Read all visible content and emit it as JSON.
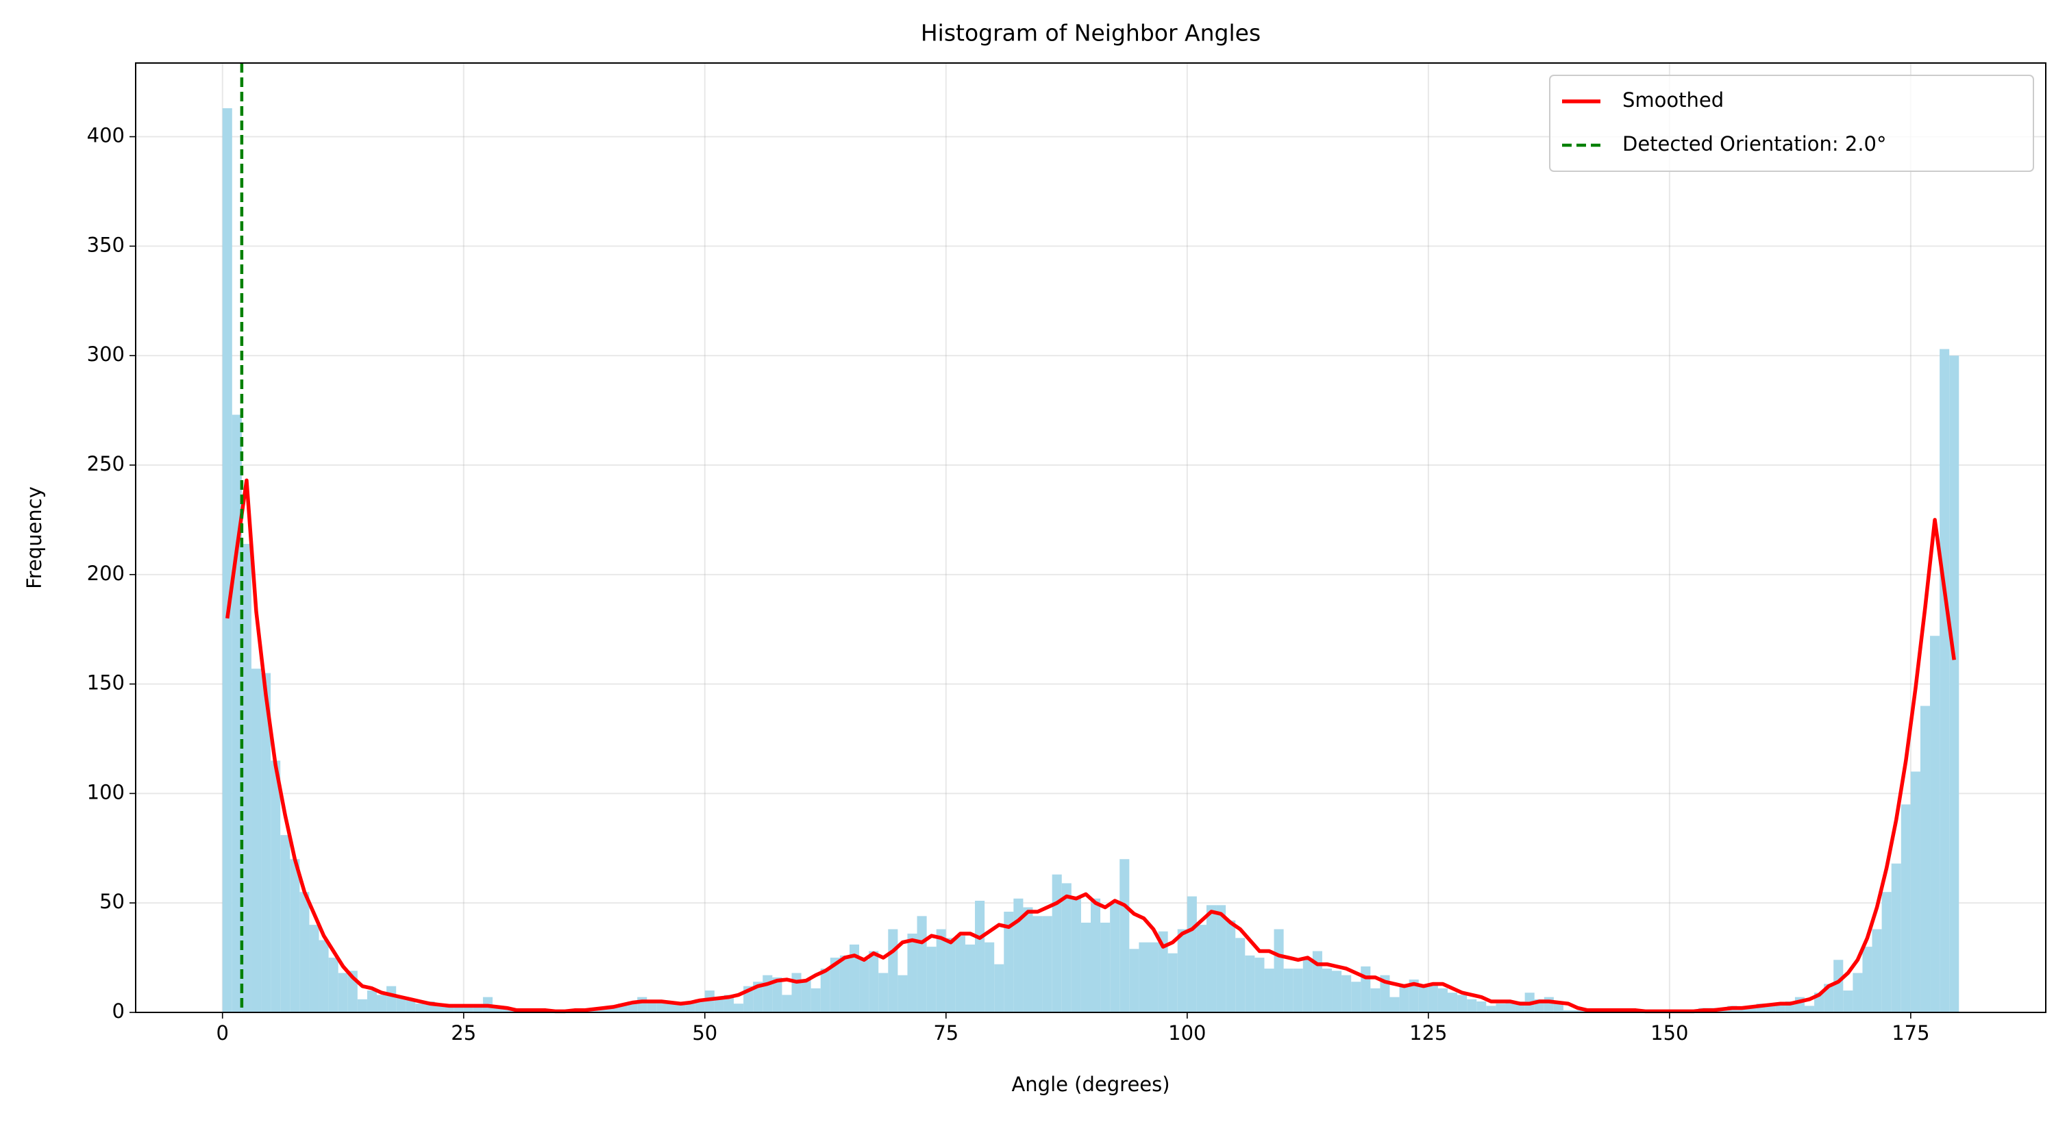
{
  "chart_data": {
    "type": "histogram",
    "title": "Histogram of Neighbor Angles",
    "xlabel": "Angle (degrees)",
    "ylabel": "Frequency",
    "bins": [
      0,
      1,
      2,
      3,
      4,
      5,
      6,
      7,
      8,
      9,
      10,
      11,
      12,
      13,
      14,
      15,
      16,
      17,
      18,
      19,
      20,
      21,
      22,
      23,
      24,
      25,
      26,
      27,
      28,
      29,
      30,
      31,
      32,
      33,
      34,
      35,
      36,
      37,
      38,
      39,
      40,
      41,
      42,
      43,
      44,
      45,
      46,
      47,
      48,
      49,
      50,
      51,
      52,
      53,
      54,
      55,
      56,
      57,
      58,
      59,
      60,
      61,
      62,
      63,
      64,
      65,
      66,
      67,
      68,
      69,
      70,
      71,
      72,
      73,
      74,
      75,
      76,
      77,
      78,
      79,
      80,
      81,
      82,
      83,
      84,
      85,
      86,
      87,
      88,
      89,
      90,
      91,
      92,
      93,
      94,
      95,
      96,
      97,
      98,
      99,
      100,
      101,
      102,
      103,
      104,
      105,
      106,
      107,
      108,
      109,
      110,
      111,
      112,
      113,
      114,
      115,
      116,
      117,
      118,
      119,
      120,
      121,
      122,
      123,
      124,
      125,
      126,
      127,
      128,
      129,
      130,
      131,
      132,
      133,
      134,
      135,
      136,
      137,
      138,
      139,
      140,
      141,
      142,
      143,
      144,
      145,
      146,
      147,
      148,
      149,
      150,
      151,
      152,
      153,
      154,
      155,
      156,
      157,
      158,
      159,
      160,
      161,
      162,
      163,
      164,
      165,
      166,
      167,
      168,
      169,
      170,
      171,
      172,
      173,
      174,
      175,
      176,
      177,
      178,
      179,
      180
    ],
    "counts": [
      413,
      273,
      214,
      157,
      155,
      115,
      81,
      70,
      55,
      40,
      33,
      25,
      18,
      19,
      6,
      10,
      8,
      12,
      7,
      6,
      4,
      5,
      3,
      3,
      3,
      3,
      3,
      7,
      2,
      2,
      1,
      1,
      1,
      0,
      0,
      1,
      1,
      1,
      2,
      2,
      3,
      4,
      5,
      7,
      5,
      5,
      4,
      4,
      5,
      6,
      10,
      6,
      8,
      4,
      12,
      14,
      17,
      16,
      8,
      18,
      15,
      11,
      20,
      25,
      26,
      31,
      24,
      28,
      18,
      38,
      17,
      36,
      44,
      30,
      38,
      34,
      35,
      31,
      51,
      32,
      22,
      46,
      52,
      48,
      44,
      44,
      63,
      59,
      53,
      41,
      52,
      41,
      50,
      70,
      29,
      32,
      32,
      37,
      27,
      38,
      53,
      40,
      49,
      49,
      42,
      34,
      26,
      25,
      20,
      38,
      20,
      20,
      24,
      28,
      20,
      19,
      17,
      14,
      21,
      11,
      17,
      7,
      13,
      15,
      12,
      13,
      11,
      9,
      8,
      6,
      5,
      3,
      4,
      5,
      5,
      9,
      6,
      7,
      5,
      1,
      1,
      1,
      1,
      1,
      1,
      1,
      1,
      1,
      1,
      1,
      1,
      1,
      1,
      2,
      2,
      2,
      3,
      2,
      3,
      4,
      4,
      4,
      5,
      7,
      3,
      9,
      13,
      24,
      10,
      18,
      30,
      38,
      55,
      68,
      95,
      110,
      140,
      172,
      303,
      300
    ],
    "color": "#a8d8ea",
    "smoothed": {
      "name": "Smoothed",
      "color": "#ff0000",
      "x": [
        0.5,
        1.5,
        2.5,
        3.5,
        4.5,
        5.5,
        6.5,
        7.5,
        8.5,
        9.5,
        10.5,
        11.5,
        12.5,
        13.5,
        14.5,
        15.5,
        16.5,
        17.5,
        18.5,
        19.5,
        20.5,
        21.5,
        22.5,
        23.5,
        24.5,
        25.5,
        26.5,
        27.5,
        28.5,
        29.5,
        30.5,
        31.5,
        32.5,
        33.5,
        34.5,
        35.5,
        36.5,
        37.5,
        38.5,
        39.5,
        40.5,
        41.5,
        42.5,
        43.5,
        44.5,
        45.5,
        46.5,
        47.5,
        48.5,
        49.5,
        50.5,
        51.5,
        52.5,
        53.5,
        54.5,
        55.5,
        56.5,
        57.5,
        58.5,
        59.5,
        60.5,
        61.5,
        62.5,
        63.5,
        64.5,
        65.5,
        66.5,
        67.5,
        68.5,
        69.5,
        70.5,
        71.5,
        72.5,
        73.5,
        74.5,
        75.5,
        76.5,
        77.5,
        78.5,
        79.5,
        80.5,
        81.5,
        82.5,
        83.5,
        84.5,
        85.5,
        86.5,
        87.5,
        88.5,
        89.5,
        90.5,
        91.5,
        92.5,
        93.5,
        94.5,
        95.5,
        96.5,
        97.5,
        98.5,
        99.5,
        100.5,
        101.5,
        102.5,
        103.5,
        104.5,
        105.5,
        106.5,
        107.5,
        108.5,
        109.5,
        110.5,
        111.5,
        112.5,
        113.5,
        114.5,
        115.5,
        116.5,
        117.5,
        118.5,
        119.5,
        120.5,
        121.5,
        122.5,
        123.5,
        124.5,
        125.5,
        126.5,
        127.5,
        128.5,
        129.5,
        130.5,
        131.5,
        132.5,
        133.5,
        134.5,
        135.5,
        136.5,
        137.5,
        138.5,
        139.5,
        140.5,
        141.5,
        142.5,
        143.5,
        144.5,
        145.5,
        146.5,
        147.5,
        148.5,
        149.5,
        150.5,
        151.5,
        152.5,
        153.5,
        154.5,
        155.5,
        156.5,
        157.5,
        158.5,
        159.5,
        160.5,
        161.5,
        162.5,
        163.5,
        164.5,
        165.5,
        166.5,
        167.5,
        168.5,
        169.5,
        170.5,
        171.5,
        172.5,
        173.5,
        174.5,
        175.5,
        176.5,
        177.5,
        178.5,
        179.5
      ],
      "values": [
        180,
        212,
        243,
        183,
        145,
        113,
        90,
        70,
        55,
        45,
        35,
        28,
        21,
        16,
        12,
        11,
        9,
        8,
        7,
        6,
        5,
        4,
        3.5,
        3,
        3,
        3,
        3,
        3,
        2.5,
        2,
        1,
        1,
        1,
        1,
        0.5,
        0.5,
        1,
        1,
        1.5,
        2,
        2.5,
        3.5,
        4.5,
        5,
        5,
        5,
        4.5,
        4,
        4.5,
        5.5,
        6,
        6.5,
        7,
        8,
        10,
        12,
        13,
        14.5,
        15,
        14,
        14.5,
        17,
        19,
        22,
        25,
        26,
        24,
        27,
        25,
        28,
        32,
        33,
        32,
        35,
        34,
        32,
        36,
        36,
        34,
        37,
        40,
        39,
        42,
        46,
        46,
        48,
        50,
        53,
        52,
        54,
        50,
        48,
        51,
        49,
        45,
        43,
        38,
        30,
        32,
        36,
        38,
        42,
        46,
        45,
        41,
        38,
        33,
        28,
        28,
        26,
        25,
        24,
        25,
        22,
        22,
        21,
        20,
        18,
        16,
        16,
        14,
        13,
        12,
        13,
        12,
        13,
        13,
        11,
        9,
        8,
        7,
        5,
        5,
        5,
        4,
        4,
        5,
        5,
        4.5,
        4,
        2,
        1,
        1,
        1,
        1,
        1,
        1,
        0.5,
        0.5,
        0.5,
        0.5,
        0.5,
        0.5,
        1,
        1,
        1.5,
        2,
        2,
        2.5,
        3,
        3.5,
        4,
        4,
        5,
        6,
        8,
        12,
        14,
        18,
        24,
        34,
        48,
        66,
        88,
        115,
        148,
        185,
        225,
        193,
        161
      ]
    },
    "vline": {
      "x": 2.0,
      "name": "Detected Orientation: 2.0°",
      "color": "#008000"
    },
    "xlim": [
      -9,
      189
    ],
    "ylim": [
      0,
      433.65
    ],
    "xticks": [
      0,
      25,
      50,
      75,
      100,
      125,
      150,
      175
    ],
    "yticks": [
      0,
      50,
      100,
      150,
      200,
      250,
      300,
      350,
      400
    ],
    "grid": true,
    "legend": "upper right"
  }
}
